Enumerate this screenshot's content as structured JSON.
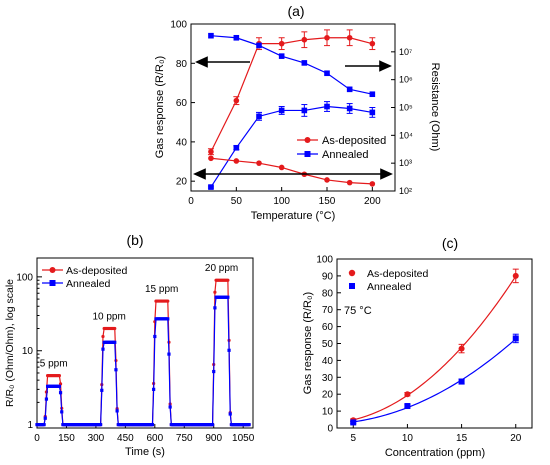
{
  "panels": {
    "a": {
      "label": "(a)",
      "xlabel": "Temperature (°C)",
      "ylabel_left": "Gas response (R/R₀)",
      "ylabel_right": "Resistance (Ohm)",
      "legend": [
        "As-deposited",
        "Annealed"
      ]
    },
    "b": {
      "label": "(b)",
      "xlabel": "Time (s)",
      "ylabel": "R/R₀ (Ohm/Ohm), log scale",
      "legend": [
        "As-deposited",
        "Annealed"
      ],
      "annotations": [
        "5 ppm",
        "10 ppm",
        "15 ppm",
        "20 ppm"
      ]
    },
    "c": {
      "label": "(c)",
      "xlabel": "Concentration (ppm)",
      "ylabel": "Gas response (R/R₀)",
      "legend": [
        "As-deposited",
        "Annealed"
      ],
      "annotation": "75 °C"
    }
  },
  "chart_data": [
    {
      "type": "line",
      "title": "(a)",
      "xlabel": "Temperature (°C)",
      "ylabel": "Gas response (R/R₀)",
      "y2label": "Resistance (Ohm)",
      "xlim": [
        0,
        225
      ],
      "ylim": [
        15,
        100
      ],
      "y2lim": [
        100,
        100000000
      ],
      "y2scale": "log",
      "xticks": [
        0,
        50,
        100,
        150,
        200
      ],
      "yticks": [
        20,
        40,
        60,
        80,
        100
      ],
      "y2ticks": [
        "10²",
        "10³",
        "10⁴",
        "10⁵",
        "10⁶",
        "10⁷"
      ],
      "x": [
        22,
        50,
        75,
        100,
        125,
        150,
        175,
        200
      ],
      "series": [
        {
          "name": "As-deposited",
          "axis": "left",
          "color": "#e41a1c",
          "marker": "circle",
          "values": [
            35,
            61,
            90,
            90,
            92,
            93,
            93,
            90
          ],
          "errors": [
            1.5,
            2,
            3,
            3,
            4,
            4,
            4,
            3
          ]
        },
        {
          "name": "Annealed",
          "axis": "left",
          "color": "#0000ff",
          "marker": "square",
          "values": [
            17,
            37,
            53,
            56,
            56,
            58,
            57,
            55
          ],
          "errors": [
            0.5,
            1,
            2,
            2,
            3,
            2.5,
            2.5,
            2.5
          ]
        },
        {
          "name": "As-deposited",
          "axis": "right",
          "color": "#e41a1c",
          "marker": "circle",
          "values": [
            1500,
            1200,
            1000,
            700,
            400,
            250,
            200,
            180
          ]
        },
        {
          "name": "Annealed",
          "axis": "right",
          "color": "#0000ff",
          "marker": "square",
          "values": [
            38000000,
            32000000,
            17000000,
            7000000,
            4000000,
            1700000,
            450000,
            300000
          ]
        }
      ],
      "legend_position": "center-right"
    },
    {
      "type": "line",
      "title": "(b)",
      "xlabel": "Time (s)",
      "ylabel": "R/R₀ (Ohm/Ohm), log scale",
      "yscale": "log",
      "xlim": [
        0,
        1100
      ],
      "ylim": [
        0.9,
        180
      ],
      "xticks": [
        0,
        150,
        300,
        450,
        600,
        750,
        900,
        1050
      ],
      "yticks": [
        1,
        10,
        100
      ],
      "pulses": [
        {
          "label": "5 ppm",
          "start": 40,
          "end": 130
        },
        {
          "label": "10 ppm",
          "start": 325,
          "end": 410
        },
        {
          "label": "15 ppm",
          "start": 590,
          "end": 680
        },
        {
          "label": "20 ppm",
          "start": 895,
          "end": 985
        }
      ],
      "series": [
        {
          "name": "As-deposited",
          "color": "#e41a1c",
          "marker": "circle",
          "peaks": [
            4.6,
            20,
            47,
            90
          ]
        },
        {
          "name": "Annealed",
          "color": "#0000ff",
          "marker": "square",
          "peaks": [
            3.3,
            13,
            27,
            53
          ]
        }
      ],
      "legend_position": "top-left"
    },
    {
      "type": "scatter",
      "title": "(c)",
      "xlabel": "Concentration (ppm)",
      "ylabel": "Gas response (R/R₀)",
      "xlim": [
        3.5,
        21.5
      ],
      "ylim": [
        0,
        100
      ],
      "xticks": [
        5,
        10,
        15,
        20
      ],
      "yticks": [
        0,
        10,
        20,
        30,
        40,
        50,
        60,
        70,
        80,
        90,
        100
      ],
      "x": [
        5,
        10,
        15,
        20
      ],
      "series": [
        {
          "name": "As-deposited",
          "color": "#e41a1c",
          "marker": "circle",
          "values": [
            4.6,
            20,
            47,
            90
          ],
          "errors": [
            0.8,
            1,
            2.5,
            4
          ],
          "fit": true
        },
        {
          "name": "Annealed",
          "color": "#0000ff",
          "marker": "square",
          "values": [
            3.3,
            13,
            27.5,
            53
          ],
          "errors": [
            0.5,
            0.8,
            1.5,
            2.5
          ],
          "fit": true
        }
      ],
      "legend_position": "top-left"
    }
  ]
}
